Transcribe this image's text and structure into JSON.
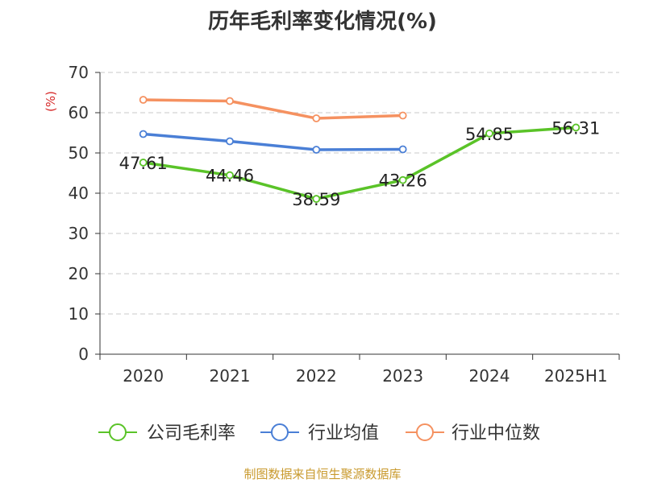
{
  "chart_data": {
    "type": "line",
    "title": "历年毛利率变化情况(%)",
    "ylabel": "(%)",
    "xlabel": "",
    "categories": [
      "2020",
      "2021",
      "2022",
      "2023",
      "2024",
      "2025H1"
    ],
    "ylim": [
      0,
      70
    ],
    "yticks": [
      0,
      10,
      20,
      30,
      40,
      50,
      60,
      70
    ],
    "grid": true,
    "legend_position": "bottom",
    "series": [
      {
        "name": "公司毛利率",
        "color": "#5ac328",
        "values": [
          47.61,
          44.46,
          38.59,
          43.26,
          54.85,
          56.31
        ],
        "labels": [
          "47.61",
          "44.46",
          "38.59",
          "43.26",
          "54.85",
          "56.31"
        ]
      },
      {
        "name": "行业均值",
        "color": "#4a7fd6",
        "values": [
          54.7,
          52.9,
          50.8,
          50.9,
          null,
          null
        ]
      },
      {
        "name": "行业中位数",
        "color": "#f59160",
        "values": [
          63.2,
          62.9,
          58.6,
          59.3,
          null,
          null
        ]
      }
    ]
  },
  "source": "制图数据来自恒生聚源数据库"
}
